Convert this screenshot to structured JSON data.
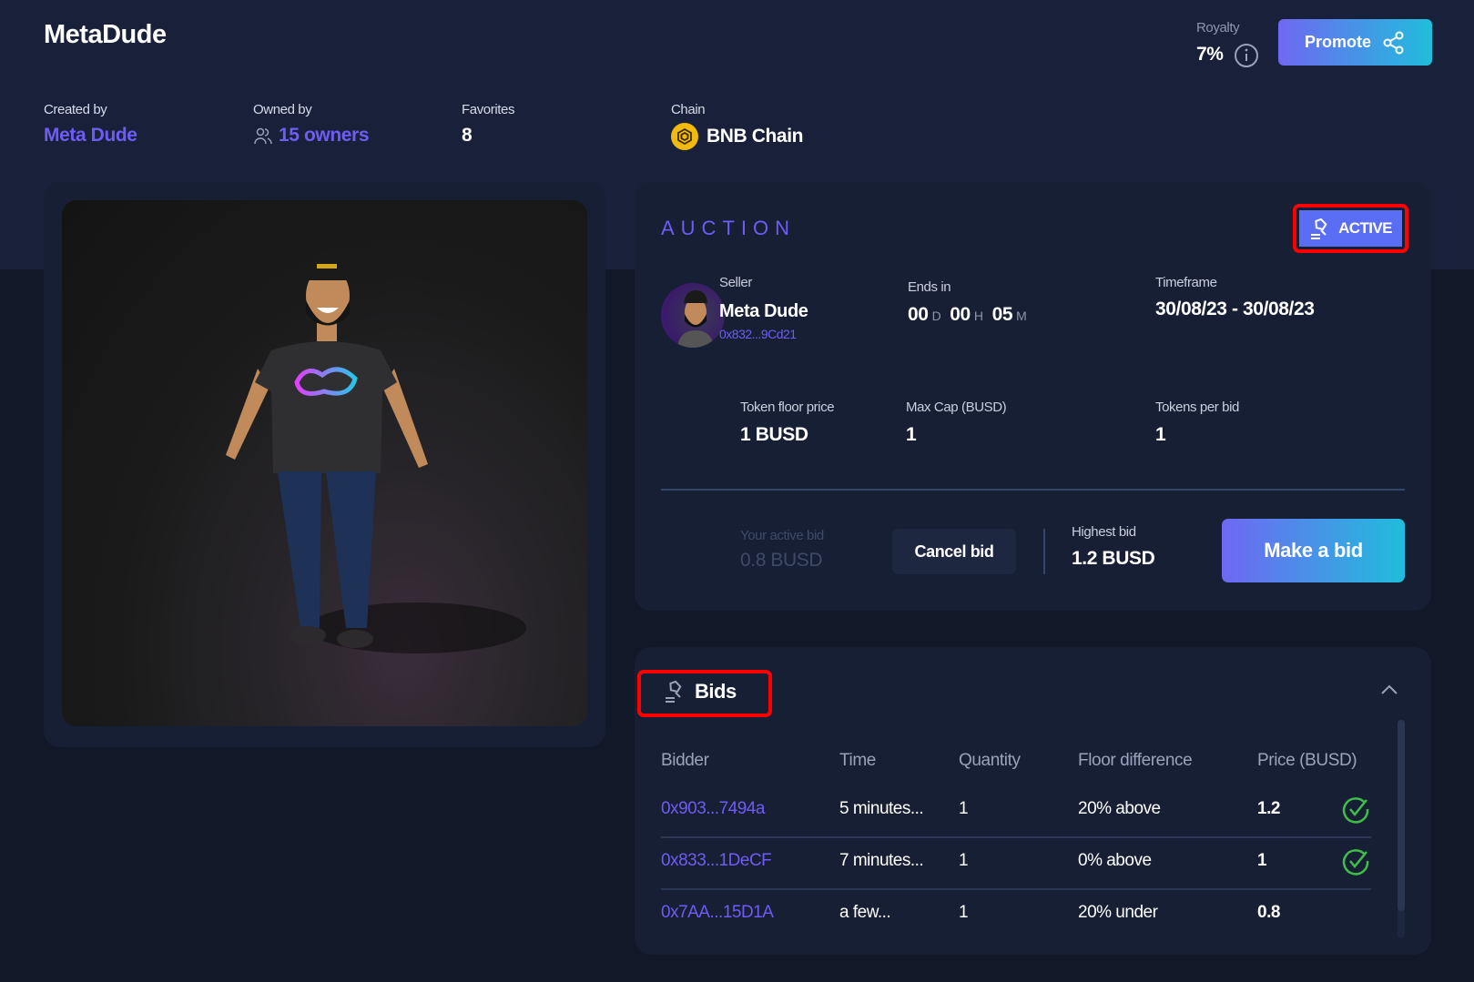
{
  "header": {
    "title": "MetaDude",
    "royalty_label": "Royalty",
    "royalty_value": "7%",
    "promote_label": "Promote"
  },
  "meta": {
    "created_by_label": "Created by",
    "created_by_value": "Meta Dude",
    "owned_by_label": "Owned by",
    "owned_by_value": "15 owners",
    "favorites_label": "Favorites",
    "favorites_value": "8",
    "chain_label": "Chain",
    "chain_value": "BNB Chain"
  },
  "auction": {
    "title": "AUCTION",
    "status": "ACTIVE",
    "seller_label": "Seller",
    "seller_name": "Meta Dude",
    "seller_address": "0x832...9Cd21",
    "ends_in_label": "Ends in",
    "days": "00",
    "days_unit": "D",
    "hours": "00",
    "hours_unit": "H",
    "minutes": "05",
    "minutes_unit": "M",
    "timeframe_label": "Timeframe",
    "timeframe_value": "30/08/23 - 30/08/23",
    "floor_price_label": "Token floor price",
    "floor_price_value": "1 BUSD",
    "max_cap_label": "Max Cap (BUSD)",
    "max_cap_value": "1",
    "tokens_per_bid_label": "Tokens per bid",
    "tokens_per_bid_value": "1",
    "your_bid_label": "Your active bid",
    "your_bid_value": "0.8 BUSD",
    "cancel_label": "Cancel bid",
    "highest_bid_label": "Highest bid",
    "highest_bid_value": "1.2 BUSD",
    "make_bid_label": "Make a bid"
  },
  "bids": {
    "title": "Bids",
    "columns": [
      "Bidder",
      "Time",
      "Quantity",
      "Floor difference",
      "Price (BUSD)"
    ],
    "rows": [
      {
        "bidder": "0x903...7494a",
        "time": "5 minutes...",
        "quantity": "1",
        "floor_diff": "20% above",
        "price": "1.2",
        "valid": true
      },
      {
        "bidder": "0x833...1DeCF",
        "time": "7 minutes...",
        "quantity": "1",
        "floor_diff": "0% above",
        "price": "1",
        "valid": true
      },
      {
        "bidder": "0x7AA...15D1A",
        "time": "a few...",
        "quantity": "1",
        "floor_diff": "20% under",
        "price": "0.8",
        "valid": false
      }
    ]
  },
  "colors": {
    "accent": "#6e5cf6",
    "check": "#3fbf4a",
    "highlight": "#ff0000",
    "badge": "#5a6ef5"
  }
}
